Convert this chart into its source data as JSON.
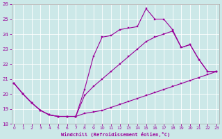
{
  "xlabel": "Windchill (Refroidissement éolien,°C)",
  "xlim": [
    -0.3,
    23.3
  ],
  "ylim": [
    18,
    26
  ],
  "xticks": [
    0,
    1,
    2,
    3,
    4,
    5,
    6,
    7,
    8,
    9,
    10,
    11,
    12,
    13,
    14,
    15,
    16,
    17,
    18,
    19,
    20,
    21,
    22,
    23
  ],
  "yticks": [
    18,
    19,
    20,
    21,
    22,
    23,
    24,
    25,
    26
  ],
  "bg_color": "#cce8e8",
  "line_color": "#990099",
  "line1_y": [
    20.7,
    20.0,
    19.4,
    18.9,
    18.6,
    18.5,
    18.5,
    18.5,
    18.7,
    18.8,
    18.9,
    19.1,
    19.3,
    19.5,
    19.7,
    19.9,
    20.1,
    20.3,
    20.5,
    20.7,
    20.9,
    21.1,
    21.3,
    21.5
  ],
  "line2_y": [
    20.7,
    20.0,
    19.4,
    18.9,
    18.6,
    18.5,
    18.5,
    18.5,
    20.3,
    22.5,
    23.8,
    23.9,
    24.3,
    24.4,
    24.5,
    25.7,
    25.0,
    25.0,
    24.3,
    23.1,
    23.3,
    22.3,
    21.5,
    21.5
  ],
  "line3_y": [
    20.7,
    20.0,
    19.4,
    18.9,
    18.6,
    18.5,
    18.5,
    18.5,
    19.9,
    20.5,
    21.0,
    21.5,
    22.0,
    22.5,
    23.0,
    23.5,
    23.8,
    24.0,
    24.2,
    23.1,
    23.3,
    22.3,
    21.5,
    21.5
  ]
}
